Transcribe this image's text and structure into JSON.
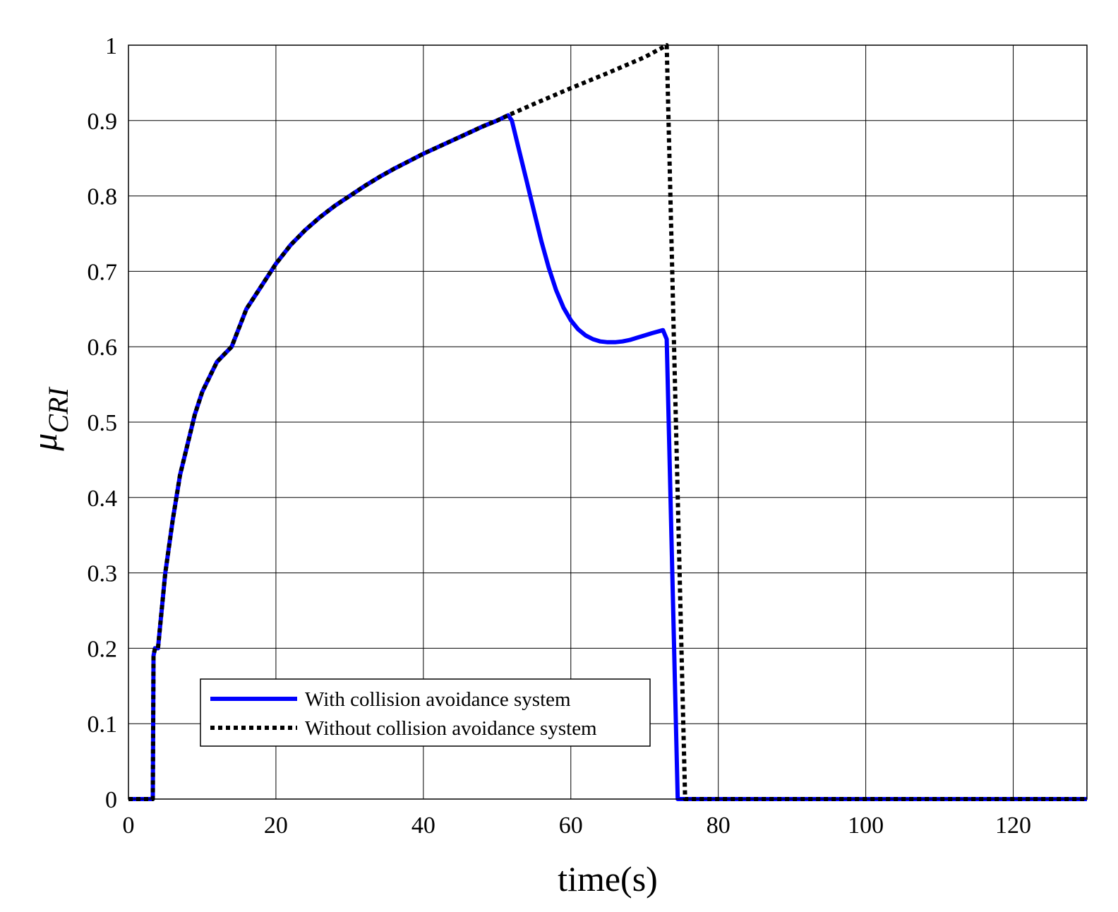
{
  "chart_data": {
    "type": "line",
    "xlabel": "time(s)",
    "ylabel_main": "μ",
    "ylabel_sub": "CRI",
    "xlim": [
      0,
      130
    ],
    "ylim": [
      0,
      1
    ],
    "xticks": [
      0,
      20,
      40,
      60,
      80,
      100,
      120
    ],
    "yticks": [
      0,
      0.1,
      0.2,
      0.3,
      0.4,
      0.5,
      0.6,
      0.7,
      0.8,
      0.9,
      1
    ],
    "ytick_labels": [
      "0",
      "0.1",
      "0.2",
      "0.3",
      "0.4",
      "0.5",
      "0.6",
      "0.7",
      "0.8",
      "0.9",
      "1"
    ],
    "grid": true,
    "legend_position": "bottom-left",
    "series": [
      {
        "name": "With collision avoidance system",
        "color": "#0000ff",
        "style": "solid",
        "x": [
          0,
          3.3,
          3.4,
          3.6,
          4,
          5,
          6,
          7,
          8,
          9,
          10,
          11,
          12,
          13,
          14,
          16,
          18,
          20,
          22,
          24,
          26,
          28,
          30,
          32,
          34,
          36,
          38,
          40,
          42,
          44,
          46,
          48,
          50,
          51.5,
          52,
          53,
          54,
          55,
          56,
          57,
          58,
          59,
          60,
          61,
          62,
          63,
          64,
          65,
          66,
          67,
          68,
          69,
          70,
          71,
          72.5,
          73,
          74.5,
          130
        ],
        "y": [
          0,
          0,
          0.19,
          0.2,
          0.2,
          0.3,
          0.37,
          0.43,
          0.47,
          0.51,
          0.54,
          0.56,
          0.58,
          0.59,
          0.6,
          0.65,
          0.68,
          0.71,
          0.735,
          0.755,
          0.772,
          0.787,
          0.8,
          0.813,
          0.825,
          0.836,
          0.846,
          0.856,
          0.865,
          0.874,
          0.883,
          0.892,
          0.9,
          0.907,
          0.9,
          0.86,
          0.82,
          0.78,
          0.74,
          0.705,
          0.675,
          0.652,
          0.635,
          0.623,
          0.615,
          0.61,
          0.607,
          0.606,
          0.606,
          0.607,
          0.609,
          0.612,
          0.615,
          0.618,
          0.622,
          0.61,
          0,
          0
        ]
      },
      {
        "name": "Without collision avoidance system",
        "color": "#000000",
        "style": "dotted",
        "x": [
          0,
          3.3,
          3.4,
          3.6,
          4,
          5,
          6,
          7,
          8,
          9,
          10,
          11,
          12,
          13,
          14,
          16,
          18,
          20,
          22,
          24,
          26,
          28,
          30,
          32,
          34,
          36,
          38,
          40,
          42,
          44,
          46,
          48,
          50,
          51.5,
          55,
          60,
          65,
          70,
          73,
          75.5,
          130
        ],
        "y": [
          0,
          0,
          0.19,
          0.2,
          0.2,
          0.3,
          0.37,
          0.43,
          0.47,
          0.51,
          0.54,
          0.56,
          0.58,
          0.59,
          0.6,
          0.65,
          0.68,
          0.71,
          0.735,
          0.755,
          0.772,
          0.787,
          0.8,
          0.813,
          0.825,
          0.836,
          0.846,
          0.856,
          0.865,
          0.874,
          0.883,
          0.892,
          0.9,
          0.907,
          0.922,
          0.943,
          0.963,
          0.984,
          1.0,
          0,
          0
        ]
      }
    ]
  }
}
